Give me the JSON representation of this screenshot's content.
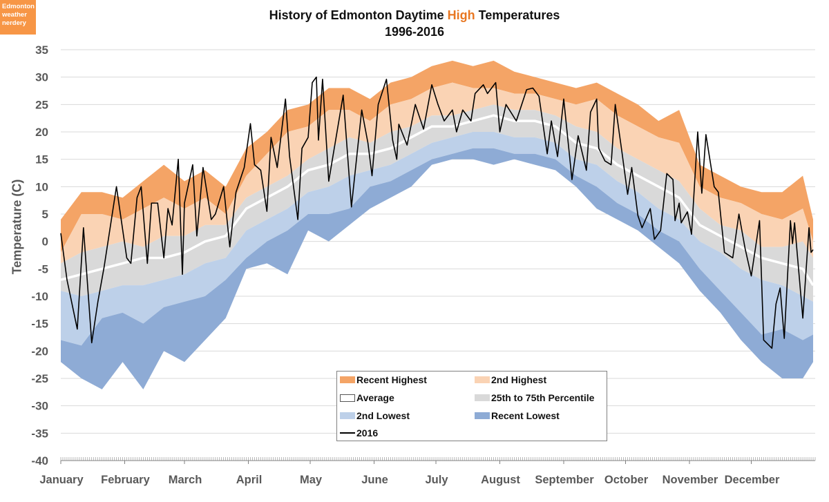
{
  "logo": {
    "line1": "Edmonton",
    "line2": "weather",
    "line3": "nerdery"
  },
  "chart_data": {
    "type": "area",
    "title": {
      "part1": "History of Edmonton Daytime ",
      "highlight": "High",
      "part2": " Temperatures",
      "subtitle": "1996-2016"
    },
    "ylabel": "Temperature (C)",
    "xlabel": "",
    "ylim": [
      -40,
      35
    ],
    "yticks": [
      35,
      30,
      25,
      20,
      15,
      10,
      5,
      0,
      -5,
      -10,
      -15,
      -20,
      -25,
      -30,
      -35,
      -40
    ],
    "grid": true,
    "legend_placement": "bottom-center",
    "x_unit": "day of year",
    "months": [
      {
        "label": "January",
        "day": 0
      },
      {
        "label": "February",
        "day": 31
      },
      {
        "label": "March",
        "day": 60
      },
      {
        "label": "April",
        "day": 91
      },
      {
        "label": "May",
        "day": 121
      },
      {
        "label": "June",
        "day": 152
      },
      {
        "label": "July",
        "day": 182
      },
      {
        "label": "August",
        "day": 213
      },
      {
        "label": "September",
        "day": 244
      },
      {
        "label": "October",
        "day": 274
      },
      {
        "label": "November",
        "day": 305
      },
      {
        "label": "December",
        "day": 335
      }
    ],
    "x": [
      0,
      10,
      20,
      30,
      40,
      50,
      60,
      70,
      80,
      90,
      100,
      110,
      120,
      130,
      140,
      150,
      160,
      170,
      180,
      190,
      200,
      210,
      220,
      230,
      240,
      250,
      260,
      270,
      280,
      290,
      300,
      310,
      320,
      330,
      340,
      350,
      360,
      365
    ],
    "series": [
      {
        "name": "Recent Highest",
        "color": "#f4a466",
        "values": [
          4,
          9,
          9,
          8,
          11,
          14,
          11,
          13,
          10,
          17,
          20,
          24,
          25,
          28,
          28,
          26,
          29,
          30,
          32,
          33,
          32,
          33,
          31,
          30,
          29,
          28,
          29,
          27,
          25,
          22,
          24,
          14,
          12,
          10,
          9,
          9,
          12,
          4
        ]
      },
      {
        "name": "2nd Highest",
        "color": "#fad3b4",
        "values": [
          -2,
          5,
          5,
          4,
          6,
          8,
          6,
          8,
          5,
          12,
          16,
          20,
          21,
          24,
          24,
          22,
          25,
          26,
          28,
          29,
          28,
          28,
          27,
          27,
          26,
          25,
          26,
          23,
          21,
          19,
          18,
          10,
          8,
          7,
          5,
          4,
          6,
          0
        ]
      },
      {
        "name": "25th to 75th Percentile",
        "color": "#d9d9d9",
        "upper": [
          -4,
          -2,
          -1,
          0,
          -1,
          1,
          1,
          3,
          3,
          8,
          10,
          12,
          15,
          17,
          19,
          18,
          20,
          21,
          23,
          23,
          24,
          25,
          24,
          24,
          23,
          21,
          20,
          17,
          15,
          13,
          11,
          6,
          3,
          2,
          -1,
          -1,
          0,
          -3
        ],
        "lower": [
          -9,
          -10,
          -9,
          -8,
          -8,
          -7,
          -6,
          -4,
          -3,
          2,
          4,
          6,
          9,
          10,
          12,
          13,
          14,
          16,
          18,
          19,
          20,
          20,
          19,
          19,
          18,
          15,
          14,
          11,
          9,
          6,
          4,
          0,
          -2,
          -5,
          -7,
          -8,
          -10,
          -11
        ]
      },
      {
        "name": "Average",
        "color": "#ffffff",
        "values": [
          -7,
          -6,
          -5,
          -4,
          -3,
          -3,
          -2,
          0,
          1,
          6,
          8,
          10,
          13,
          14,
          16,
          16,
          17,
          19,
          21,
          21,
          22,
          23,
          22,
          22,
          21,
          18,
          17,
          14,
          12,
          10,
          8,
          3,
          1,
          -1,
          -3,
          -4,
          -5,
          -8
        ]
      },
      {
        "name": "2nd Lowest",
        "color": "#bdd0e9",
        "values": [
          -18,
          -19,
          -14,
          -13,
          -15,
          -12,
          -11,
          -10,
          -7,
          -3,
          0,
          2,
          5,
          5,
          6,
          10,
          11,
          13,
          15,
          16,
          17,
          17,
          16,
          16,
          15,
          12,
          10,
          7,
          5,
          2,
          0,
          -5,
          -9,
          -13,
          -17,
          -16,
          -18,
          -17
        ]
      },
      {
        "name": "Recent Lowest",
        "color": "#8eabd5",
        "values": [
          -22,
          -25,
          -27,
          -22,
          -27,
          -20,
          -22,
          -18,
          -14,
          -5,
          -4,
          -6,
          2,
          0,
          3,
          6,
          8,
          10,
          14,
          15,
          15,
          14,
          15,
          14,
          13,
          10,
          6,
          4,
          2,
          -1,
          -4,
          -9,
          -13,
          -18,
          -22,
          -25,
          -25,
          -22
        ]
      },
      {
        "name": "2016",
        "color": "#000000",
        "points": [
          [
            0,
            1.5
          ],
          [
            3,
            -7
          ],
          [
            8,
            -16
          ],
          [
            11,
            2.5
          ],
          [
            15,
            -18.5
          ],
          [
            18,
            -11
          ],
          [
            21,
            -4.7
          ],
          [
            27,
            10
          ],
          [
            32,
            -3
          ],
          [
            34,
            -4
          ],
          [
            37,
            8
          ],
          [
            39,
            10
          ],
          [
            42,
            -4
          ],
          [
            44,
            7
          ],
          [
            47,
            7
          ],
          [
            50,
            -3
          ],
          [
            52,
            6
          ],
          [
            54,
            3
          ],
          [
            57,
            15
          ],
          [
            59,
            -6
          ],
          [
            60,
            7
          ],
          [
            64,
            14
          ],
          [
            66,
            1
          ],
          [
            69,
            13.5
          ],
          [
            73,
            4
          ],
          [
            75,
            5
          ],
          [
            79,
            10
          ],
          [
            82,
            -1
          ],
          [
            85,
            9
          ],
          [
            89,
            13.5
          ],
          [
            92,
            21.5
          ],
          [
            94,
            14
          ],
          [
            97,
            13
          ],
          [
            100,
            5.5
          ],
          [
            102,
            19
          ],
          [
            105,
            13.5
          ],
          [
            109,
            26
          ],
          [
            111,
            15.5
          ],
          [
            115,
            4
          ],
          [
            117,
            17
          ],
          [
            120,
            19
          ],
          [
            122,
            29
          ],
          [
            124,
            30
          ],
          [
            125,
            18.5
          ],
          [
            127,
            29.6
          ],
          [
            130,
            11
          ],
          [
            132,
            15.5
          ],
          [
            137,
            26.7
          ],
          [
            141,
            6.3
          ],
          [
            146,
            24
          ],
          [
            149,
            18
          ],
          [
            151,
            12
          ],
          [
            154,
            25
          ],
          [
            158,
            29.6
          ],
          [
            161,
            18.5
          ],
          [
            163,
            15
          ],
          [
            164,
            21.4
          ],
          [
            168,
            17.6
          ],
          [
            172,
            25
          ],
          [
            176,
            20.5
          ],
          [
            180,
            28.6
          ],
          [
            183,
            25
          ],
          [
            186,
            22
          ],
          [
            190,
            24
          ],
          [
            192,
            20
          ],
          [
            195,
            24
          ],
          [
            199,
            22
          ],
          [
            201,
            27
          ],
          [
            205,
            28.6
          ],
          [
            207,
            27
          ],
          [
            211,
            29
          ],
          [
            213,
            20
          ],
          [
            216,
            25
          ],
          [
            221,
            22
          ],
          [
            226,
            27.7
          ],
          [
            229,
            28
          ],
          [
            232,
            26.5
          ],
          [
            236,
            16
          ],
          [
            238,
            22
          ],
          [
            241,
            15.5
          ],
          [
            244,
            26
          ],
          [
            248,
            11.3
          ],
          [
            251,
            19.3
          ],
          [
            255,
            13
          ],
          [
            257,
            23.6
          ],
          [
            260,
            26
          ],
          [
            261,
            17
          ],
          [
            264,
            14.7
          ],
          [
            267,
            14
          ],
          [
            269,
            25
          ],
          [
            272,
            17
          ],
          [
            275,
            8.6
          ],
          [
            277,
            13.5
          ],
          [
            280,
            4.7
          ],
          [
            282,
            2.5
          ],
          [
            286,
            6
          ],
          [
            288,
            0.4
          ],
          [
            291,
            2
          ],
          [
            294,
            12.4
          ],
          [
            297,
            11.3
          ],
          [
            298,
            3.8
          ],
          [
            300,
            7
          ],
          [
            301,
            3.4
          ],
          [
            304,
            5.4
          ],
          [
            306,
            1.3
          ],
          [
            309,
            20
          ],
          [
            311,
            8.8
          ],
          [
            313,
            19.5
          ],
          [
            317,
            10
          ],
          [
            319,
            9
          ],
          [
            322,
            -2
          ],
          [
            326,
            -3
          ],
          [
            329,
            5
          ],
          [
            332,
            -1.3
          ],
          [
            335,
            -6.3
          ],
          [
            339,
            3.8
          ],
          [
            341,
            -18
          ],
          [
            345,
            -19.5
          ],
          [
            347,
            -11.4
          ],
          [
            349,
            -8.5
          ],
          [
            351,
            -17.7
          ],
          [
            354,
            3.8
          ],
          [
            355,
            -0.4
          ],
          [
            356,
            3.4
          ],
          [
            360,
            -14
          ],
          [
            363,
            2.5
          ],
          [
            364,
            -2
          ],
          [
            365,
            -1.5
          ]
        ]
      }
    ]
  },
  "legend": {
    "items": [
      "Recent Highest",
      "2nd Highest",
      "Average",
      "25th to 75th Percentile",
      "2nd Lowest",
      "Recent Lowest",
      "2016"
    ]
  }
}
